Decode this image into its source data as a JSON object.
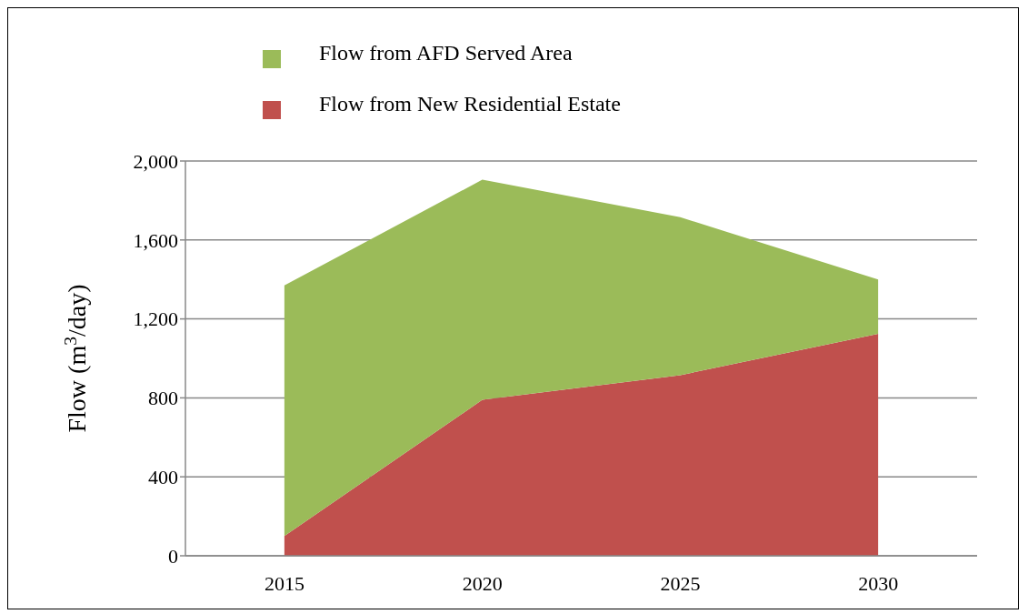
{
  "chart_data": {
    "type": "area",
    "stacked": true,
    "categories": [
      "2015",
      "2020",
      "2025",
      "2030"
    ],
    "ylabel": "Flow (m$^{3}$/day)",
    "ylim": [
      0,
      2000
    ],
    "yticks": [
      0,
      400,
      800,
      {
        "value": 1200,
        "label": "1,200"
      },
      {
        "value": 1600,
        "label": "1,600"
      },
      {
        "value": 2000,
        "label": "2,000"
      }
    ],
    "grid": "y",
    "legend": "top",
    "series": [
      {
        "name": "Flow from New Residential Estate",
        "color": "#c0504d",
        "values": [
          100,
          790,
          915,
          1125
        ]
      },
      {
        "name": "Flow from AFD Served Area",
        "color": "#9bbb59",
        "values": [
          1270,
          1115,
          800,
          275
        ]
      }
    ]
  }
}
